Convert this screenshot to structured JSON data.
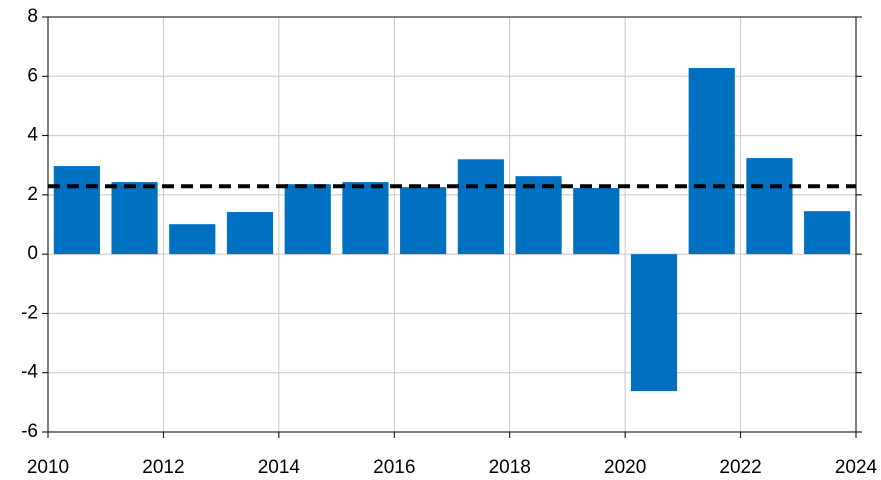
{
  "chart_data": {
    "type": "bar",
    "x": [
      2010,
      2011,
      2012,
      2013,
      2014,
      2015,
      2016,
      2017,
      2018,
      2019,
      2020,
      2021,
      2022,
      2023
    ],
    "values": [
      2.97,
      2.43,
      1.01,
      1.42,
      2.36,
      2.43,
      2.26,
      3.2,
      2.63,
      2.23,
      -4.62,
      6.28,
      3.24,
      1.45
    ],
    "color": "#0070c0",
    "hline": 2.29,
    "xlim": [
      2010,
      2024
    ],
    "xticks": [
      2010,
      2012,
      2014,
      2016,
      2018,
      2020,
      2022,
      2024
    ],
    "ylim": [
      -6,
      8
    ],
    "yticks": [
      -6,
      -4,
      -2,
      0,
      2,
      4,
      6,
      8
    ],
    "grid": true
  }
}
